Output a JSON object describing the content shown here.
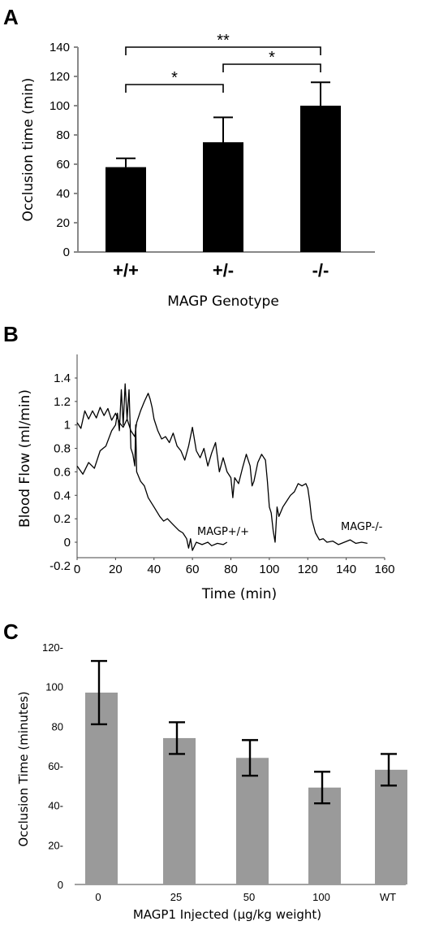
{
  "panels": {
    "a_letter": "A",
    "b_letter": "B",
    "c_letter": "C"
  },
  "chart_data": [
    {
      "panel": "A",
      "type": "bar",
      "ylabel": "Occlusion time (min)",
      "xlabel": "MAGP Genotype",
      "categories": [
        "+/+",
        "+/-",
        "-/-"
      ],
      "values": [
        58,
        75,
        100
      ],
      "errors": [
        6,
        17,
        16
      ],
      "yticks": [
        "0",
        "20",
        "40",
        "60",
        "80",
        "100",
        "120",
        "140"
      ],
      "ylim": [
        0,
        140
      ],
      "bar_color": "#000000",
      "significance": [
        {
          "from": 0,
          "to": 1,
          "label": "*"
        },
        {
          "from": 1,
          "to": 2,
          "label": "*"
        },
        {
          "from": 0,
          "to": 2,
          "label": "**"
        }
      ]
    },
    {
      "panel": "B",
      "type": "line",
      "ylabel": "Blood Flow (ml/min)",
      "xlabel": "Time (min)",
      "xticks": [
        "0",
        "20",
        "40",
        "60",
        "80",
        "100",
        "120",
        "140",
        "160"
      ],
      "yticks": [
        "-0.2",
        "0",
        "0.2",
        "0.4",
        "0.6",
        "0.8",
        "1",
        "1.2",
        "1.4"
      ],
      "xlim": [
        0,
        160
      ],
      "ylim": [
        -0.2,
        1.5
      ],
      "line_color": "#000000",
      "series": [
        {
          "name": "MAGP+/+",
          "points": [
            [
              0,
              0.65
            ],
            [
              3,
              0.58
            ],
            [
              6,
              0.68
            ],
            [
              9,
              0.63
            ],
            [
              12,
              0.78
            ],
            [
              15,
              0.82
            ],
            [
              18,
              0.95
            ],
            [
              20,
              1.0
            ],
            [
              21,
              1.1
            ],
            [
              22,
              0.95
            ],
            [
              23,
              1.3
            ],
            [
              24,
              1.0
            ],
            [
              25,
              1.35
            ],
            [
              26,
              1.05
            ],
            [
              27,
              1.3
            ],
            [
              28,
              0.8
            ],
            [
              29,
              0.75
            ],
            [
              30,
              0.65
            ],
            [
              30.5,
              1.0
            ],
            [
              31,
              0.6
            ],
            [
              33,
              0.52
            ],
            [
              35,
              0.48
            ],
            [
              37,
              0.38
            ],
            [
              40,
              0.3
            ],
            [
              43,
              0.22
            ],
            [
              45,
              0.18
            ],
            [
              47,
              0.2
            ],
            [
              50,
              0.15
            ],
            [
              53,
              0.1
            ],
            [
              55,
              0.08
            ],
            [
              57,
              0.03
            ],
            [
              58,
              -0.05
            ],
            [
              59,
              0.03
            ],
            [
              60,
              -0.07
            ],
            [
              62,
              0.0
            ],
            [
              65,
              -0.02
            ],
            [
              68,
              0.0
            ],
            [
              70,
              -0.03
            ],
            [
              73,
              -0.01
            ],
            [
              76,
              -0.02
            ],
            [
              78,
              0.0
            ]
          ]
        },
        {
          "name": "MAGP-/-",
          "points": [
            [
              0,
              1.02
            ],
            [
              2,
              0.97
            ],
            [
              4,
              1.12
            ],
            [
              6,
              1.05
            ],
            [
              8,
              1.12
            ],
            [
              10,
              1.06
            ],
            [
              12,
              1.15
            ],
            [
              14,
              1.08
            ],
            [
              16,
              1.14
            ],
            [
              18,
              1.04
            ],
            [
              20,
              1.1
            ],
            [
              22,
              1.02
            ],
            [
              24,
              0.98
            ],
            [
              26,
              1.05
            ],
            [
              28,
              0.95
            ],
            [
              30,
              0.9
            ],
            [
              31,
              1.02
            ],
            [
              33,
              1.12
            ],
            [
              35,
              1.2
            ],
            [
              37,
              1.27
            ],
            [
              38,
              1.22
            ],
            [
              39,
              1.15
            ],
            [
              40,
              1.05
            ],
            [
              42,
              0.95
            ],
            [
              44,
              0.88
            ],
            [
              46,
              0.9
            ],
            [
              48,
              0.85
            ],
            [
              50,
              0.93
            ],
            [
              52,
              0.82
            ],
            [
              54,
              0.78
            ],
            [
              56,
              0.7
            ],
            [
              58,
              0.82
            ],
            [
              60,
              0.98
            ],
            [
              62,
              0.78
            ],
            [
              64,
              0.72
            ],
            [
              66,
              0.8
            ],
            [
              68,
              0.65
            ],
            [
              70,
              0.76
            ],
            [
              72,
              0.85
            ],
            [
              74,
              0.6
            ],
            [
              76,
              0.72
            ],
            [
              78,
              0.6
            ],
            [
              80,
              0.55
            ],
            [
              81,
              0.38
            ],
            [
              82,
              0.55
            ],
            [
              84,
              0.5
            ],
            [
              86,
              0.63
            ],
            [
              88,
              0.75
            ],
            [
              90,
              0.65
            ],
            [
              91,
              0.48
            ],
            [
              92,
              0.52
            ],
            [
              94,
              0.68
            ],
            [
              96,
              0.75
            ],
            [
              98,
              0.7
            ],
            [
              99,
              0.52
            ],
            [
              100,
              0.3
            ],
            [
              101,
              0.25
            ],
            [
              102,
              0.1
            ],
            [
              103,
              0.0
            ],
            [
              104,
              0.3
            ],
            [
              105,
              0.22
            ],
            [
              107,
              0.3
            ],
            [
              109,
              0.35
            ],
            [
              111,
              0.4
            ],
            [
              113,
              0.43
            ],
            [
              115,
              0.5
            ],
            [
              117,
              0.48
            ],
            [
              119,
              0.5
            ],
            [
              120,
              0.46
            ],
            [
              121,
              0.35
            ],
            [
              122,
              0.2
            ],
            [
              124,
              0.08
            ],
            [
              126,
              0.02
            ],
            [
              128,
              0.03
            ],
            [
              130,
              0.0
            ],
            [
              133,
              0.01
            ],
            [
              136,
              -0.02
            ],
            [
              139,
              0.0
            ],
            [
              142,
              0.02
            ],
            [
              145,
              -0.01
            ],
            [
              148,
              0.0
            ],
            [
              151,
              -0.01
            ]
          ]
        }
      ],
      "labels": [
        "MAGP+/+",
        "MAGP-/-"
      ]
    },
    {
      "panel": "C",
      "type": "bar",
      "ylabel": "Occlusion Time (minutes)",
      "xlabel": "MAGP1 Injected (µg/kg weight)",
      "categories": [
        "0",
        "25",
        "50",
        "100",
        "WT"
      ],
      "values": [
        97,
        74,
        64,
        49,
        58
      ],
      "errors": [
        16,
        8,
        9,
        8,
        8
      ],
      "yticks": [
        "0",
        "20-",
        "40-",
        "60-",
        "80",
        "100",
        "120-"
      ],
      "ylim": [
        0,
        120
      ],
      "bar_color": "#9a9a9a"
    }
  ]
}
